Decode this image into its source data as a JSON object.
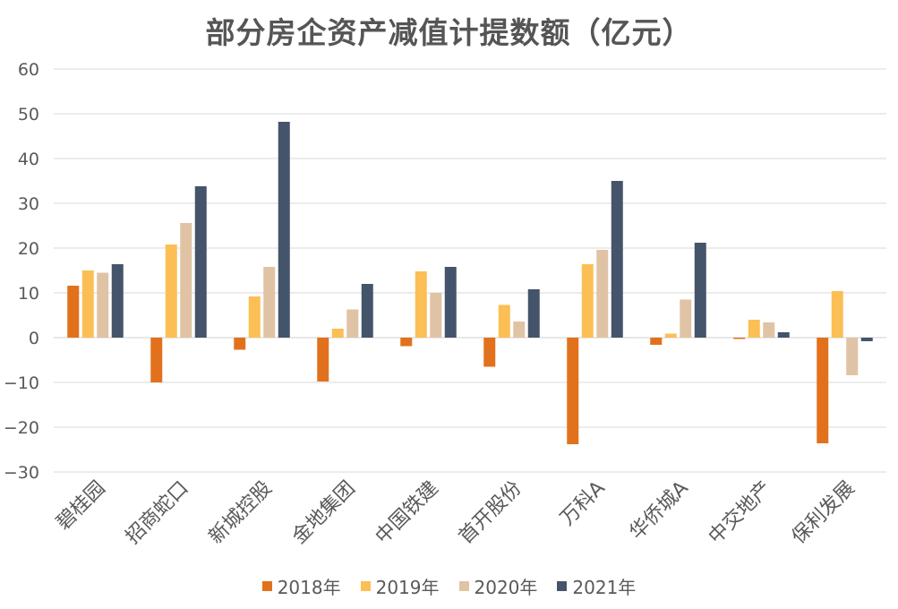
{
  "chart_data": {
    "type": "bar",
    "title": "部分房企资产减值计提数额（亿元）",
    "categories": [
      "碧桂园",
      "招商蛇口",
      "新城控股",
      "金地集团",
      "中国铁建",
      "首开股份",
      "万科A",
      "华侨城A",
      "中交地产",
      "保利发展"
    ],
    "series": [
      {
        "name": "2018年",
        "color": "#E2711D",
        "values": [
          11.6,
          -10.0,
          -2.7,
          -9.8,
          -1.9,
          -6.5,
          -23.8,
          -1.6,
          -0.3,
          -23.6
        ]
      },
      {
        "name": "2019年",
        "color": "#FBBF55",
        "values": [
          15.0,
          20.8,
          9.2,
          2.0,
          14.8,
          7.3,
          16.4,
          0.9,
          4.0,
          10.4
        ]
      },
      {
        "name": "2020年",
        "color": "#E0C3A5",
        "values": [
          14.5,
          25.6,
          15.8,
          6.3,
          10.0,
          3.6,
          19.6,
          8.5,
          3.4,
          -8.4
        ]
      },
      {
        "name": "2021年",
        "color": "#44546A",
        "values": [
          16.4,
          33.8,
          48.2,
          12.0,
          15.8,
          10.8,
          35.0,
          21.2,
          1.2,
          -0.8
        ]
      }
    ],
    "yticks": [
      "60",
      "50",
      "40",
      "30",
      "20",
      "10",
      "0",
      "-10",
      "-20",
      "-30"
    ],
    "ylim": [
      -30,
      60
    ],
    "grid": true,
    "legend_position": "bottom"
  }
}
